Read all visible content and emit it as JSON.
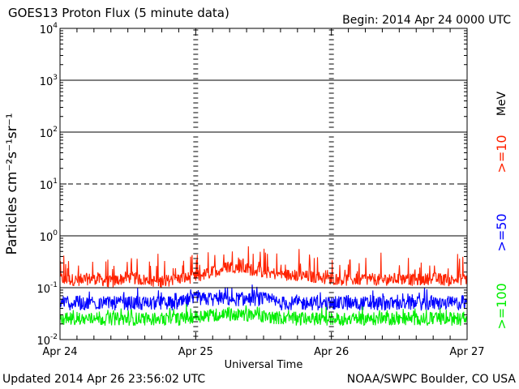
{
  "header": {
    "title": "GOES13 Proton Flux (5 minute data)",
    "begin": "Begin: 2014 Apr 24 0000 UTC"
  },
  "footer": {
    "updated": "Updated 2014 Apr 26 23:56:02 UTC",
    "credit": "NOAA/SWPC Boulder, CO USA"
  },
  "chart_data": {
    "type": "line",
    "title": "GOES13 Proton Flux (5 minute data)",
    "xlabel": "Universal Time",
    "ylabel": "Particles cm⁻²s⁻¹sr⁻¹",
    "yscale": "log",
    "ylim": [
      0.01,
      10000
    ],
    "xlim": [
      0,
      72
    ],
    "x_unit": "hours since 2014 Apr 24 0000 UTC",
    "x_ticks": [
      "Apr 24",
      "Apr 25",
      "Apr 26",
      "Apr 27"
    ],
    "y_ticks": [
      {
        "base": "10",
        "exp": "4"
      },
      {
        "base": "10",
        "exp": "3"
      },
      {
        "base": "10",
        "exp": "2"
      },
      {
        "base": "10",
        "exp": "1"
      },
      {
        "base": "10",
        "exp": "0"
      },
      {
        "base": "10",
        "exp": "-1"
      },
      {
        "base": "10",
        "exp": "-2"
      }
    ],
    "threshold_lines": [
      {
        "value": 10,
        "style": "dashed"
      },
      {
        "value": 0.1,
        "style": "solid"
      }
    ],
    "legend_unit": "MeV",
    "series": [
      {
        "name": ">=10",
        "color": "#ff2200",
        "x": [
          0,
          3,
          6,
          9,
          12,
          15,
          18,
          21,
          24,
          27,
          30,
          33,
          36,
          39,
          42,
          45,
          48,
          51,
          54,
          57,
          60,
          63,
          66,
          69,
          72
        ],
        "values": [
          0.15,
          0.14,
          0.15,
          0.13,
          0.16,
          0.14,
          0.13,
          0.15,
          0.16,
          0.2,
          0.26,
          0.23,
          0.2,
          0.18,
          0.17,
          0.16,
          0.15,
          0.14,
          0.15,
          0.14,
          0.15,
          0.14,
          0.15,
          0.14,
          0.15
        ]
      },
      {
        "name": ">=50",
        "color": "#0000ff",
        "x": [
          0,
          3,
          6,
          9,
          12,
          15,
          18,
          21,
          24,
          27,
          30,
          33,
          36,
          39,
          42,
          45,
          48,
          51,
          54,
          57,
          60,
          63,
          66,
          69,
          72
        ],
        "values": [
          0.05,
          0.05,
          0.05,
          0.05,
          0.05,
          0.05,
          0.05,
          0.05,
          0.06,
          0.06,
          0.06,
          0.06,
          0.06,
          0.05,
          0.05,
          0.05,
          0.05,
          0.05,
          0.05,
          0.05,
          0.05,
          0.05,
          0.05,
          0.05,
          0.05
        ]
      },
      {
        "name": ">=100",
        "color": "#00ee00",
        "x": [
          0,
          3,
          6,
          9,
          12,
          15,
          18,
          21,
          24,
          27,
          30,
          33,
          36,
          39,
          42,
          45,
          48,
          51,
          54,
          57,
          60,
          63,
          66,
          69,
          72
        ],
        "values": [
          0.025,
          0.025,
          0.025,
          0.025,
          0.025,
          0.025,
          0.025,
          0.025,
          0.028,
          0.03,
          0.03,
          0.03,
          0.028,
          0.026,
          0.025,
          0.025,
          0.025,
          0.025,
          0.025,
          0.025,
          0.025,
          0.025,
          0.025,
          0.025,
          0.025
        ]
      }
    ]
  }
}
